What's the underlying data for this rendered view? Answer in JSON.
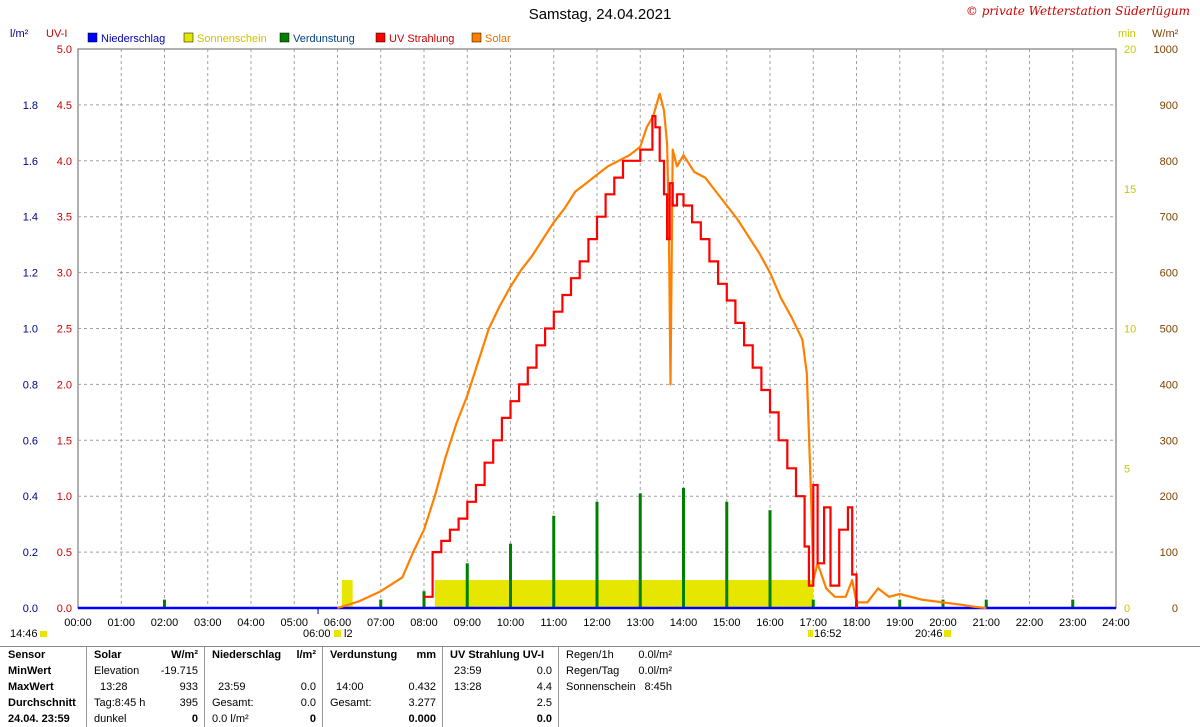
{
  "title": "Samstag, 24.04.2021",
  "copyright": "© private Wetterstation Süderlügum",
  "axes": {
    "left_unit": "l/m²",
    "uv_unit": "UV-I",
    "min_unit": "min",
    "wm2_unit": "W/m²"
  },
  "legend": [
    {
      "label": "Niederschlag",
      "color": "#0000ff"
    },
    {
      "label": "Sonnenschein",
      "color": "#e6e600"
    },
    {
      "label": "Verdunstung",
      "color": "#008000"
    },
    {
      "label": "UV Strahlung",
      "color": "#ff0000"
    },
    {
      "label": "Solar",
      "color": "#ff8000"
    }
  ],
  "colors": {
    "rain": "#0000ff",
    "sunshine": "#e6e600",
    "evap": "#008000",
    "uv": "#ff0000",
    "solar": "#ff8000",
    "grid": "#a0a0a0",
    "left_axis": "#00008b",
    "uv_axis": "#cc0000",
    "sun_axis": "#c8c800",
    "solar_axis": "#804000"
  },
  "chart_data": {
    "type": "line",
    "title": "Samstag, 24.04.2021",
    "x_ticks": [
      "00:00",
      "01:00",
      "02:00",
      "03:00",
      "04:00",
      "05:00",
      "06:00",
      "07:00",
      "08:00",
      "09:00",
      "10:00",
      "11:00",
      "12:00",
      "13:00",
      "14:00",
      "15:00",
      "16:00",
      "17:00",
      "18:00",
      "19:00",
      "20:00",
      "21:00",
      "22:00",
      "23:00",
      "24:00"
    ],
    "xlim": [
      0,
      24
    ],
    "grid": true,
    "legend_position": "top-left",
    "y_left_rain": {
      "label": "l/m²",
      "ylim": [
        0,
        2.0
      ],
      "ticks": [
        "0.0",
        "0.2",
        "0.4",
        "0.6",
        "0.8",
        "1.0",
        "1.2",
        "1.4",
        "1.6",
        "1.8"
      ]
    },
    "y_left_uv": {
      "label": "UV-I",
      "ylim": [
        0,
        5.0
      ],
      "ticks": [
        "0.0",
        "0.5",
        "1.0",
        "1.5",
        "2.0",
        "2.5",
        "3.0",
        "3.5",
        "4.0",
        "4.5",
        "5.0"
      ]
    },
    "y_right_min": {
      "label": "min",
      "ylim": [
        0,
        20
      ],
      "ticks": [
        "0",
        "5",
        "10",
        "15",
        "20"
      ]
    },
    "y_right_wm2": {
      "label": "W/m²",
      "ylim": [
        0,
        1000
      ],
      "ticks": [
        "0",
        "100",
        "200",
        "300",
        "400",
        "500",
        "600",
        "700",
        "800",
        "900",
        "1000"
      ]
    },
    "series": [
      {
        "name": "Solar",
        "unit": "W/m²",
        "x": [
          6.0,
          6.5,
          7.0,
          7.5,
          7.75,
          8.0,
          8.25,
          8.5,
          8.75,
          9.0,
          9.25,
          9.5,
          9.75,
          10.0,
          10.25,
          10.5,
          10.75,
          11.0,
          11.25,
          11.5,
          11.75,
          12.0,
          12.25,
          12.5,
          12.75,
          13.0,
          13.15,
          13.3,
          13.45,
          13.55,
          13.62,
          13.66,
          13.7,
          13.75,
          13.85,
          14.0,
          14.25,
          14.5,
          14.75,
          15.0,
          15.25,
          15.5,
          15.75,
          16.0,
          16.25,
          16.5,
          16.75,
          16.85,
          16.95,
          17.0,
          17.1,
          17.3,
          17.5,
          17.75,
          17.9,
          18.0,
          18.25,
          18.5,
          18.75,
          19.0,
          19.5,
          20.0,
          20.5,
          20.75,
          21.0
        ],
        "y": [
          0,
          12,
          30,
          55,
          100,
          140,
          200,
          270,
          330,
          380,
          440,
          500,
          540,
          575,
          605,
          630,
          660,
          690,
          715,
          745,
          760,
          775,
          790,
          800,
          810,
          825,
          860,
          880,
          920,
          890,
          830,
          690,
          400,
          820,
          790,
          810,
          780,
          770,
          745,
          720,
          695,
          665,
          635,
          600,
          555,
          520,
          480,
          420,
          200,
          50,
          80,
          35,
          20,
          20,
          50,
          10,
          10,
          35,
          20,
          25,
          15,
          10,
          5,
          2,
          0
        ]
      },
      {
        "name": "UV Strahlung",
        "unit": "UV-I",
        "x": [
          8.0,
          8.2,
          8.4,
          8.6,
          8.8,
          9.0,
          9.2,
          9.4,
          9.6,
          9.8,
          10.0,
          10.2,
          10.4,
          10.6,
          10.8,
          11.0,
          11.2,
          11.4,
          11.6,
          11.8,
          12.0,
          12.2,
          12.4,
          12.6,
          12.8,
          13.0,
          13.1,
          13.28,
          13.35,
          13.45,
          13.55,
          13.62,
          13.68,
          13.75,
          13.85,
          14.0,
          14.2,
          14.4,
          14.6,
          14.8,
          15.0,
          15.2,
          15.4,
          15.6,
          15.8,
          16.0,
          16.2,
          16.4,
          16.6,
          16.8,
          16.9,
          17.0,
          17.1,
          17.25,
          17.4,
          17.6,
          17.8,
          17.9,
          18.0
        ],
        "y": [
          0.1,
          0.5,
          0.6,
          0.7,
          0.8,
          0.95,
          1.1,
          1.3,
          1.5,
          1.7,
          1.85,
          2.0,
          2.15,
          2.35,
          2.5,
          2.65,
          2.8,
          2.95,
          3.1,
          3.3,
          3.5,
          3.7,
          3.85,
          4.0,
          4.0,
          4.1,
          4.1,
          4.4,
          4.3,
          4.0,
          3.7,
          3.3,
          3.8,
          3.6,
          3.7,
          3.6,
          3.45,
          3.3,
          3.1,
          2.9,
          2.75,
          2.55,
          2.35,
          2.15,
          1.95,
          1.75,
          1.5,
          1.25,
          1.0,
          0.55,
          0.2,
          1.1,
          0.4,
          0.9,
          0.2,
          0.7,
          0.9,
          0.3,
          0.0
        ]
      },
      {
        "name": "Verdunstung",
        "unit": "l/m²",
        "x": [
          2.0,
          7.0,
          8.0,
          9.0,
          10.0,
          11.0,
          12.0,
          13.0,
          14.0,
          15.0,
          16.0,
          17.0,
          18.0,
          19.0,
          20.0,
          21.0,
          23.0
        ],
        "y": [
          0.03,
          0.03,
          0.06,
          0.16,
          0.23,
          0.33,
          0.38,
          0.41,
          0.43,
          0.38,
          0.35,
          0.03,
          0.03,
          0.03,
          0.03,
          0.03,
          0.03
        ]
      },
      {
        "name": "Sonnenschein",
        "unit": "min",
        "bars": [
          {
            "from": 6.1,
            "to": 6.35,
            "value": 1.0
          },
          {
            "from": 8.25,
            "to": 17.0,
            "value": 1.0
          }
        ]
      },
      {
        "name": "Niederschlag",
        "unit": "l/m²",
        "x": [
          0,
          24
        ],
        "y": [
          0,
          0
        ]
      }
    ],
    "markers": {
      "sunrise": "06:00",
      "sunrise_suffix": "l2",
      "sunset": "20:46",
      "left_time": "14:46",
      "evening_time": "16:52"
    }
  },
  "summary": {
    "sensor": {
      "header": "Sensor",
      "rows": [
        "MinWert",
        "MaxWert",
        "Durchschnitt",
        "24.04. 23:59"
      ]
    },
    "solar": {
      "header": "Solar",
      "unit": "W/m²",
      "rows": [
        [
          "Elevation",
          "-19.715"
        ],
        [
          "13:28",
          "933"
        ],
        [
          "Tag:8:45 h",
          "395"
        ],
        [
          "dunkel",
          "0"
        ]
      ]
    },
    "rain": {
      "header": "Niederschlag",
      "unit": "l/m²",
      "rows": [
        [
          "",
          ""
        ],
        [
          "23:59",
          "0.0"
        ],
        [
          "Gesamt:",
          "0.0"
        ],
        [
          "0.0 l/m²",
          "0"
        ]
      ]
    },
    "evap": {
      "header": "Verdunstung",
      "unit": "mm",
      "rows": [
        [
          "",
          ""
        ],
        [
          "14:00",
          "0.432"
        ],
        [
          "Gesamt:",
          "3.277"
        ],
        [
          "",
          "0.000"
        ]
      ]
    },
    "uv": {
      "header": "UV Strahlung UV-I",
      "unit": "",
      "rows": [
        [
          "23:59",
          "0.0"
        ],
        [
          "13:28",
          "4.4"
        ],
        [
          "",
          "2.5"
        ],
        [
          "",
          "0.0"
        ]
      ]
    },
    "extra": {
      "rows": [
        [
          "Regen/1h",
          "0.0l/m²"
        ],
        [
          "Regen/Tag",
          "0.0l/m²"
        ],
        [
          "Sonnenschein",
          "8:45h"
        ]
      ]
    }
  }
}
